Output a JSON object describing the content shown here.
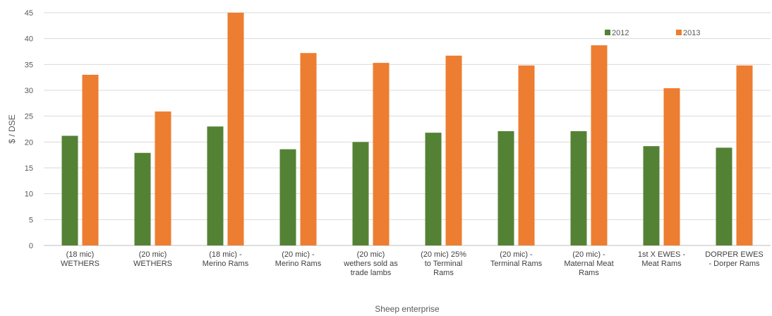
{
  "chart_data": {
    "type": "bar",
    "title": "",
    "xlabel": "Sheep enterprise",
    "ylabel": "$ / DSE",
    "ylim": [
      0,
      45
    ],
    "yticks": [
      0,
      5,
      10,
      15,
      20,
      25,
      30,
      35,
      40,
      45
    ],
    "grid": true,
    "legend_position": "top-right",
    "categories": [
      [
        "(18 mic)",
        "WETHERS"
      ],
      [
        "(20 mic)",
        "WETHERS"
      ],
      [
        "(18 mic) -",
        "Merino Rams"
      ],
      [
        "(20 mic) -",
        "Merino Rams"
      ],
      [
        "(20 mic)",
        "wethers sold as",
        "trade lambs"
      ],
      [
        "(20 mic)  25%",
        "to Terminal",
        "Rams"
      ],
      [
        "(20 mic) -",
        "Terminal Rams"
      ],
      [
        "(20 mic) -",
        "Maternal Meat",
        "Rams"
      ],
      [
        "1st X EWES -",
        "Meat Rams"
      ],
      [
        "DORPER EWES",
        "- Dorper Rams"
      ]
    ],
    "series": [
      {
        "name": "2012",
        "color": "#548235",
        "values": [
          21.2,
          17.9,
          23.0,
          18.6,
          20.0,
          21.8,
          22.1,
          22.1,
          19.2,
          18.9
        ]
      },
      {
        "name": "2013",
        "color": "#ED7D31",
        "values": [
          33.0,
          25.9,
          45.0,
          37.2,
          35.3,
          36.7,
          34.8,
          38.7,
          30.4,
          34.8
        ]
      }
    ]
  }
}
